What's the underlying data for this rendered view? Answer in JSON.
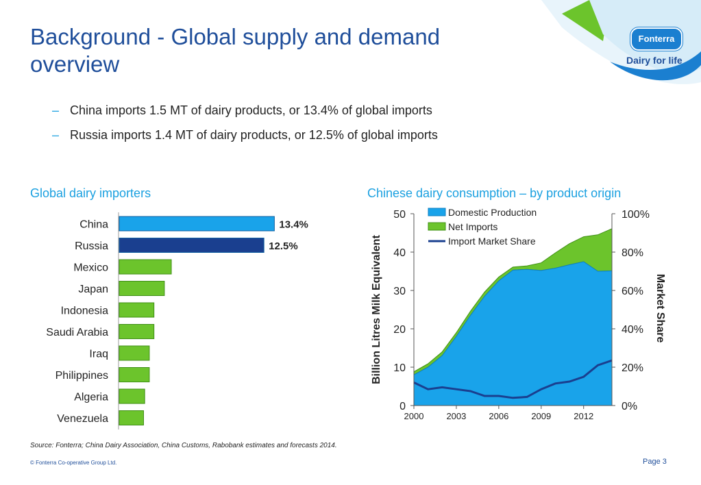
{
  "slide": {
    "title": "Background - Global supply and demand overview",
    "bullets": [
      "China imports 1.5 MT of dairy products, or 13.4% of global imports",
      "Russia imports 1.4 MT of dairy products, or 12.5% of global imports"
    ],
    "logo": {
      "brand": "Fonterra",
      "tagline": "Dairy for life"
    },
    "source": "Source: Fonterra; China Dairy Association, China Customs, Rabobank estimates and forecasts 2014.",
    "copyright": "© Fonterra Co-operative Group Ltd.",
    "page": "Page 3",
    "colors": {
      "title": "#1f4e9a",
      "accent": "#1aa0e0",
      "domestic": "#19a3ea",
      "imports": "#6cc42c",
      "share": "#1a3f8f"
    }
  },
  "chart_data": [
    {
      "type": "bar",
      "orientation": "horizontal",
      "title": "Global dairy importers",
      "categories": [
        "China",
        "Russia",
        "Mexico",
        "Japan",
        "Indonesia",
        "Saudi Arabia",
        "Iraq",
        "Philippines",
        "Algeria",
        "Venezuela"
      ],
      "values": [
        13.4,
        12.5,
        4.5,
        3.9,
        3.0,
        3.0,
        2.6,
        2.6,
        2.2,
        2.1
      ],
      "data_labels": [
        "13.4%",
        "12.5%",
        "",
        "",
        "",
        "",
        "",
        "",
        "",
        ""
      ],
      "xlim": [
        0,
        14
      ],
      "colors": [
        "#19a3ea",
        "#1a3f8f",
        "#6cc42c",
        "#6cc42c",
        "#6cc42c",
        "#6cc42c",
        "#6cc42c",
        "#6cc42c",
        "#6cc42c",
        "#6cc42c"
      ]
    },
    {
      "type": "area",
      "title": "Chinese dairy consumption – by product origin",
      "x": [
        2000,
        2001,
        2002,
        2003,
        2004,
        2005,
        2006,
        2007,
        2008,
        2009,
        2010,
        2011,
        2012,
        2013,
        2014
      ],
      "x_ticks": [
        "2000",
        "2003",
        "2006",
        "2009",
        "2012"
      ],
      "ylabel": "Billion Litres Milk Equivalent",
      "ylim": [
        0,
        50
      ],
      "y_ticks": [
        "0",
        "10",
        "20",
        "30",
        "40",
        "50"
      ],
      "y2label": "Market Share",
      "y2lim": [
        0,
        100
      ],
      "y2_ticks": [
        "0%",
        "20%",
        "40%",
        "60%",
        "80%",
        "100%"
      ],
      "legend_position": "top",
      "series": [
        {
          "name": "Domestic Production",
          "type": "area",
          "axis": "left",
          "values": [
            8,
            10,
            13,
            18,
            23.5,
            28.5,
            32.5,
            35.3,
            35.5,
            35.2,
            35.8,
            36.7,
            37.5,
            35,
            35.1
          ]
        },
        {
          "name": "Net Imports",
          "type": "area",
          "axis": "left",
          "values": [
            0.8,
            0.9,
            1.0,
            1.0,
            1.1,
            1.1,
            1.0,
            0.8,
            0.9,
            2.0,
            4.0,
            5.5,
            6.5,
            9.5,
            11
          ]
        },
        {
          "name": "Import Market Share",
          "type": "line",
          "axis": "right",
          "values": [
            12,
            8.5,
            9.5,
            8.5,
            7.5,
            5,
            5,
            4,
            4.5,
            8.5,
            11.5,
            12.5,
            15,
            21,
            23.5
          ]
        }
      ]
    }
  ]
}
